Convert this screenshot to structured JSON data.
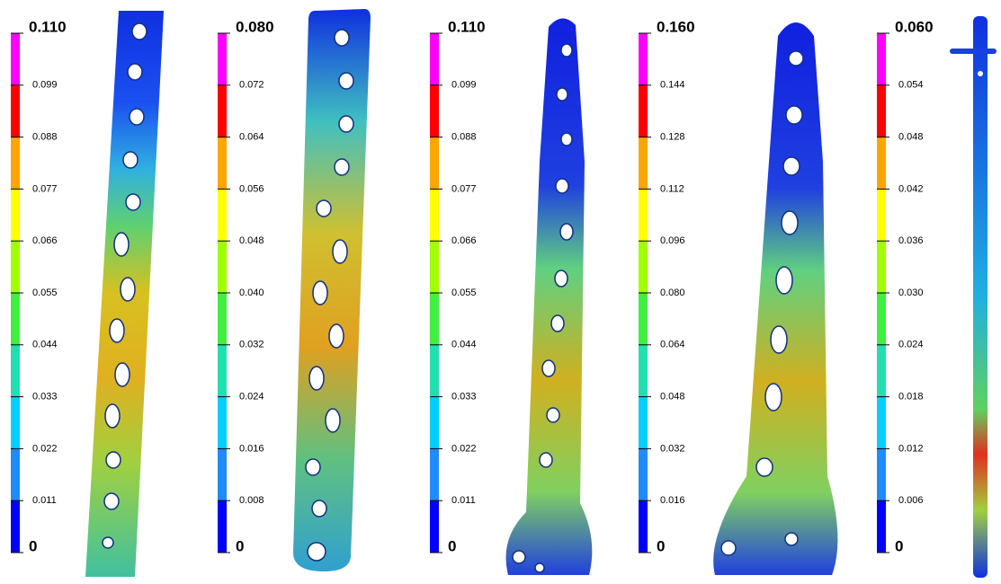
{
  "legends": [
    {
      "labels": [
        "0.110",
        "0.099",
        "0.088",
        "0.077",
        "0.066",
        "0.055",
        "0.044",
        "0.033",
        "0.022",
        "0.011",
        "0"
      ]
    },
    {
      "labels": [
        "0.080",
        "0.072",
        "0.064",
        "0.056",
        "0.048",
        "0.040",
        "0.032",
        "0.024",
        "0.016",
        "0.008",
        "0"
      ]
    },
    {
      "labels": [
        "0.110",
        "0.099",
        "0.088",
        "0.077",
        "0.066",
        "0.055",
        "0.044",
        "0.033",
        "0.022",
        "0.011",
        "0"
      ]
    },
    {
      "labels": [
        "0.160",
        "0.144",
        "0.128",
        "0.112",
        "0.096",
        "0.080",
        "0.064",
        "0.048",
        "0.032",
        "0.016",
        "0"
      ]
    },
    {
      "labels": [
        "0.060",
        "0.054",
        "0.048",
        "0.042",
        "0.036",
        "0.030",
        "0.024",
        "0.018",
        "0.012",
        "0.006",
        "0"
      ]
    }
  ]
}
